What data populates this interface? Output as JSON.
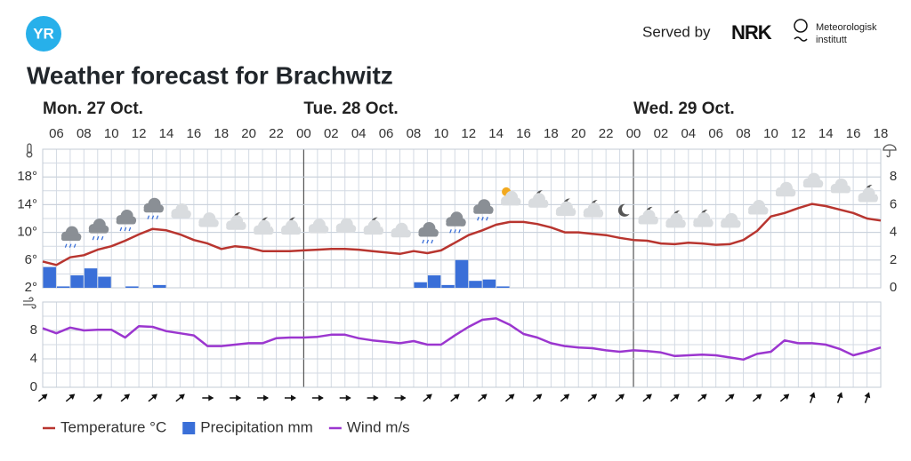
{
  "header": {
    "logo": "YR",
    "served_by": "Served by",
    "provider": "NRK",
    "institute": [
      "Meteorologisk",
      "institutt"
    ]
  },
  "chart_data": [
    {
      "type": "line",
      "title": "Weather forecast for Brachwitz",
      "days": [
        "Mon. 27 Oct.",
        "Tue. 28 Oct.",
        "Wed. 29 Oct."
      ],
      "hour_labels": [
        "06",
        "08",
        "10",
        "12",
        "14",
        "16",
        "18",
        "20",
        "22",
        "00",
        "02",
        "04",
        "06",
        "08",
        "10",
        "12",
        "14",
        "16",
        "18",
        "20",
        "22",
        "00",
        "02",
        "04",
        "06",
        "08",
        "10",
        "12",
        "14",
        "16",
        "18"
      ],
      "series": [
        {
          "name": "Temperature °C",
          "color": "#b8352f",
          "values": [
            5.8,
            5.3,
            6.4,
            6.7,
            7.5,
            8.0,
            8.8,
            9.7,
            10.5,
            10.3,
            9.7,
            8.9,
            8.4,
            7.6,
            8.0,
            7.8,
            7.3,
            7.3,
            7.3,
            7.4,
            7.5,
            7.6,
            7.6,
            7.5,
            7.3,
            7.1,
            6.9,
            7.3,
            7.0,
            7.4,
            8.5,
            9.6,
            10.3,
            11.1,
            11.5,
            11.5,
            11.2,
            10.7,
            10.0,
            10.0,
            9.8,
            9.6,
            9.2,
            8.9,
            8.8,
            8.4,
            8.3,
            8.5,
            8.4,
            8.2,
            8.3,
            8.9,
            10.2,
            12.3,
            12.8,
            13.5,
            14.1,
            13.8,
            13.3,
            12.8,
            12.0,
            11.7
          ]
        },
        {
          "name": "Precipitation mm",
          "type": "bar",
          "axis": "y2",
          "color": "#3a6fd8",
          "values": [
            1.5,
            0.1,
            0.9,
            1.4,
            0.8,
            0,
            0.1,
            0,
            0.2,
            0,
            0,
            0,
            0,
            0,
            0,
            0,
            0,
            0,
            0,
            0,
            0,
            0,
            0,
            0,
            0,
            0,
            0,
            0.4,
            0.9,
            0.2,
            2.0,
            0.5,
            0.6,
            0.1,
            0,
            0,
            0,
            0,
            0,
            0,
            0,
            0,
            0,
            0,
            0,
            0,
            0,
            0,
            0,
            0,
            0,
            0,
            0,
            0,
            0,
            0,
            0,
            0,
            0,
            0,
            0,
            0
          ]
        }
      ],
      "ylim": [
        2,
        22
      ],
      "yticks": [
        {
          "value": 2,
          "label": "2°"
        },
        {
          "value": 6,
          "label": "6°"
        },
        {
          "value": 10,
          "label": "10°"
        },
        {
          "value": 14,
          "label": "14°"
        },
        {
          "value": 18,
          "label": "18°"
        }
      ],
      "y2lim": [
        0,
        10
      ],
      "y2ticks": [
        0,
        2,
        4,
        6,
        8
      ],
      "grid": true
    },
    {
      "type": "line",
      "series": [
        {
          "name": "Wind m/s",
          "color": "#9b36cf",
          "values": [
            8.3,
            7.6,
            8.4,
            8.0,
            8.1,
            8.1,
            7.0,
            8.6,
            8.5,
            7.9,
            7.6,
            7.3,
            5.8,
            5.8,
            6.0,
            6.2,
            6.2,
            6.9,
            7.0,
            7.0,
            7.1,
            7.4,
            7.4,
            6.9,
            6.6,
            6.4,
            6.2,
            6.5,
            6.0,
            6.0,
            7.3,
            8.5,
            9.5,
            9.7,
            8.8,
            7.5,
            7.0,
            6.2,
            5.8,
            5.6,
            5.5,
            5.2,
            5.0,
            5.2,
            5.1,
            4.9,
            4.4,
            4.5,
            4.6,
            4.5,
            4.2,
            3.9,
            4.7,
            5.0,
            6.6,
            6.2,
            6.2,
            6.0,
            5.4,
            4.5,
            5.0,
            5.6
          ]
        }
      ],
      "ylim": [
        0,
        12
      ],
      "yticks": [
        0,
        4,
        8
      ],
      "grid": true
    }
  ]
}
